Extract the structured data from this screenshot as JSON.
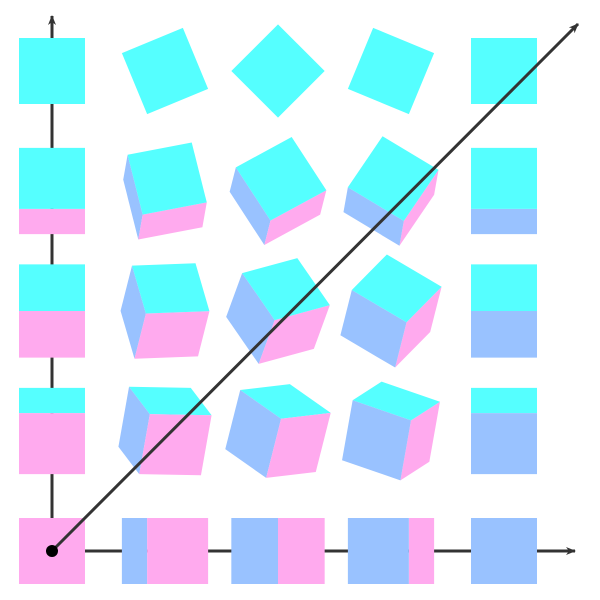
{
  "colors": {
    "front": "#ffaaee",
    "top": "#55ffff",
    "side": "#99c2ff",
    "axis": "#333333",
    "origin": "#000000",
    "background": "#ffffff"
  },
  "cube_grid": {
    "columns": 5,
    "rows": 5
  }
}
